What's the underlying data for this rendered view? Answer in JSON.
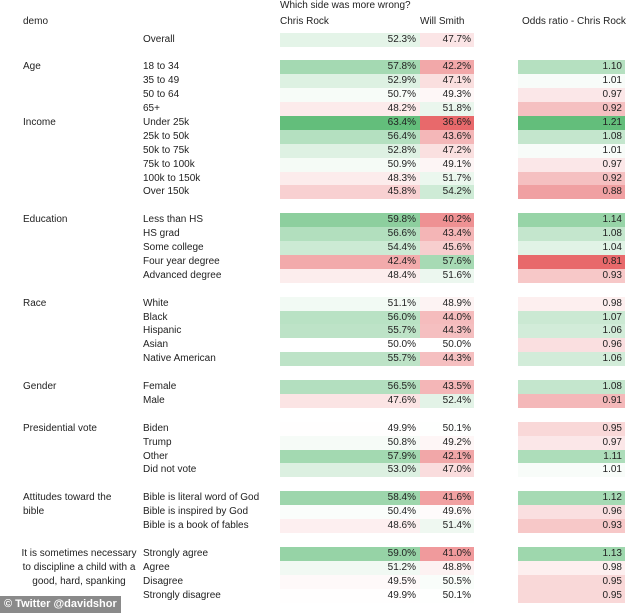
{
  "header": {
    "question": "Which side was more wrong?",
    "demo_label": "demo",
    "col_chris": "Chris Rock",
    "col_will": "Will Smith",
    "col_odds": "Odds ratio - Chris Rock"
  },
  "colors": {
    "green": "#63be7b",
    "red": "#e8696b"
  },
  "chart_data": {
    "type": "table",
    "groups": [
      {
        "label": "",
        "rows": [
          {
            "sub": "Overall",
            "chris": "52.3%",
            "will": "47.7%",
            "odds": ""
          }
        ]
      },
      {
        "label": "Age",
        "rows": [
          {
            "sub": "18 to 34",
            "chris": "57.8%",
            "will": "42.2%",
            "odds": "1.10"
          },
          {
            "sub": "35 to 49",
            "chris": "52.9%",
            "will": "47.1%",
            "odds": "1.01"
          },
          {
            "sub": "50 to 64",
            "chris": "50.7%",
            "will": "49.3%",
            "odds": "0.97"
          },
          {
            "sub": "65+",
            "chris": "48.2%",
            "will": "51.8%",
            "odds": "0.92"
          }
        ]
      },
      {
        "label": "Income",
        "nogap": true,
        "rows": [
          {
            "sub": "Under 25k",
            "chris": "63.4%",
            "will": "36.6%",
            "odds": "1.21"
          },
          {
            "sub": "25k to 50k",
            "chris": "56.4%",
            "will": "43.6%",
            "odds": "1.08"
          },
          {
            "sub": "50k to 75k",
            "chris": "52.8%",
            "will": "47.2%",
            "odds": "1.01"
          },
          {
            "sub": "75k to 100k",
            "chris": "50.9%",
            "will": "49.1%",
            "odds": "0.97"
          },
          {
            "sub": "100k to 150k",
            "chris": "48.3%",
            "will": "51.7%",
            "odds": "0.92"
          },
          {
            "sub": "Over 150k",
            "chris": "45.8%",
            "will": "54.2%",
            "odds": "0.88"
          }
        ]
      },
      {
        "label": "Education",
        "rows": [
          {
            "sub": "Less than HS",
            "chris": "59.8%",
            "will": "40.2%",
            "odds": "1.14"
          },
          {
            "sub": "HS grad",
            "chris": "56.6%",
            "will": "43.4%",
            "odds": "1.08"
          },
          {
            "sub": "Some college",
            "chris": "54.4%",
            "will": "45.6%",
            "odds": "1.04"
          },
          {
            "sub": "Four year degree",
            "chris": "42.4%",
            "will": "57.6%",
            "odds": "0.81"
          },
          {
            "sub": "Advanced degree",
            "chris": "48.4%",
            "will": "51.6%",
            "odds": "0.93"
          }
        ]
      },
      {
        "label": "Race",
        "rows": [
          {
            "sub": "White",
            "chris": "51.1%",
            "will": "48.9%",
            "odds": "0.98"
          },
          {
            "sub": "Black",
            "chris": "56.0%",
            "will": "44.0%",
            "odds": "1.07"
          },
          {
            "sub": "Hispanic",
            "chris": "55.7%",
            "will": "44.3%",
            "odds": "1.06"
          },
          {
            "sub": "Asian",
            "chris": "50.0%",
            "will": "50.0%",
            "odds": "0.96"
          },
          {
            "sub": "Native American",
            "chris": "55.7%",
            "will": "44.3%",
            "odds": "1.06"
          }
        ]
      },
      {
        "label": "Gender",
        "rows": [
          {
            "sub": "Female",
            "chris": "56.5%",
            "will": "43.5%",
            "odds": "1.08"
          },
          {
            "sub": "Male",
            "chris": "47.6%",
            "will": "52.4%",
            "odds": "0.91"
          }
        ]
      },
      {
        "label": "Presidential vote",
        "rows": [
          {
            "sub": "Biden",
            "chris": "49.9%",
            "will": "50.1%",
            "odds": "0.95"
          },
          {
            "sub": "Trump",
            "chris": "50.8%",
            "will": "49.2%",
            "odds": "0.97"
          },
          {
            "sub": "Other",
            "chris": "57.9%",
            "will": "42.1%",
            "odds": "1.11"
          },
          {
            "sub": "Did not vote",
            "chris": "53.0%",
            "will": "47.0%",
            "odds": "1.01"
          }
        ]
      },
      {
        "label": "Attitudes toward the bible",
        "rows": [
          {
            "sub": "Bible is literal word of God",
            "chris": "58.4%",
            "will": "41.6%",
            "odds": "1.12"
          },
          {
            "sub": "Bible is inspired by God",
            "chris": "50.4%",
            "will": "49.6%",
            "odds": "0.96"
          },
          {
            "sub": "Bible is a book of fables",
            "chris": "48.6%",
            "will": "51.4%",
            "odds": "0.93"
          }
        ]
      },
      {
        "label": "It is sometimes necessary to discipline a child with a good, hard, spanking",
        "multiline": true,
        "rows": [
          {
            "sub": "Strongly agree",
            "chris": "59.0%",
            "will": "41.0%",
            "odds": "1.13"
          },
          {
            "sub": "Agree",
            "chris": "51.2%",
            "will": "48.8%",
            "odds": "0.98"
          },
          {
            "sub": "Disagree",
            "chris": "49.5%",
            "will": "50.5%",
            "odds": "0.95"
          },
          {
            "sub": "Strongly disagree",
            "chris": "49.9%",
            "will": "50.1%",
            "odds": "0.95"
          }
        ]
      }
    ]
  },
  "footer": {
    "credit": "© Twitter @davidshor"
  }
}
